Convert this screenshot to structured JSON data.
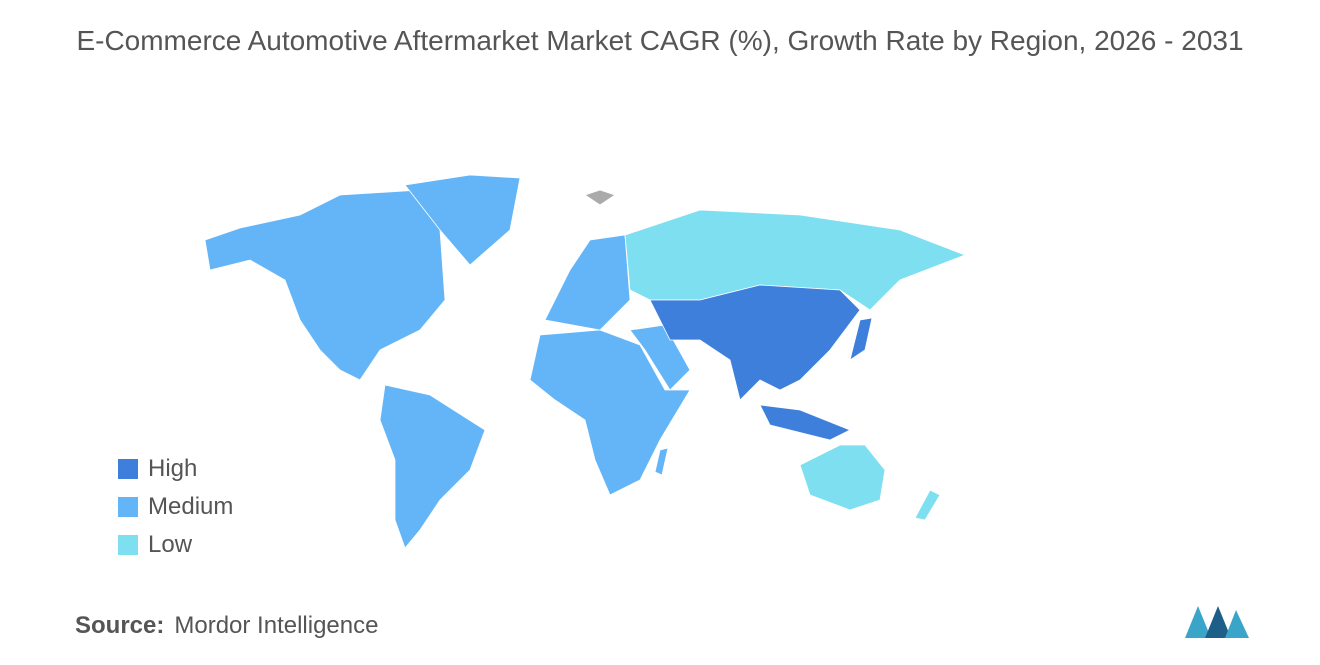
{
  "title": "E-Commerce Automotive Aftermarket Market CAGR (%), Growth Rate by Region, 2026 - 2031",
  "legend": [
    {
      "label": "High",
      "color": "#3e7fdc"
    },
    {
      "label": "Medium",
      "color": "#64b5f8"
    },
    {
      "label": "Low",
      "color": "#7ddff0"
    }
  ],
  "source": {
    "label": "Source:",
    "text": "Mordor Intelligence"
  }
}
